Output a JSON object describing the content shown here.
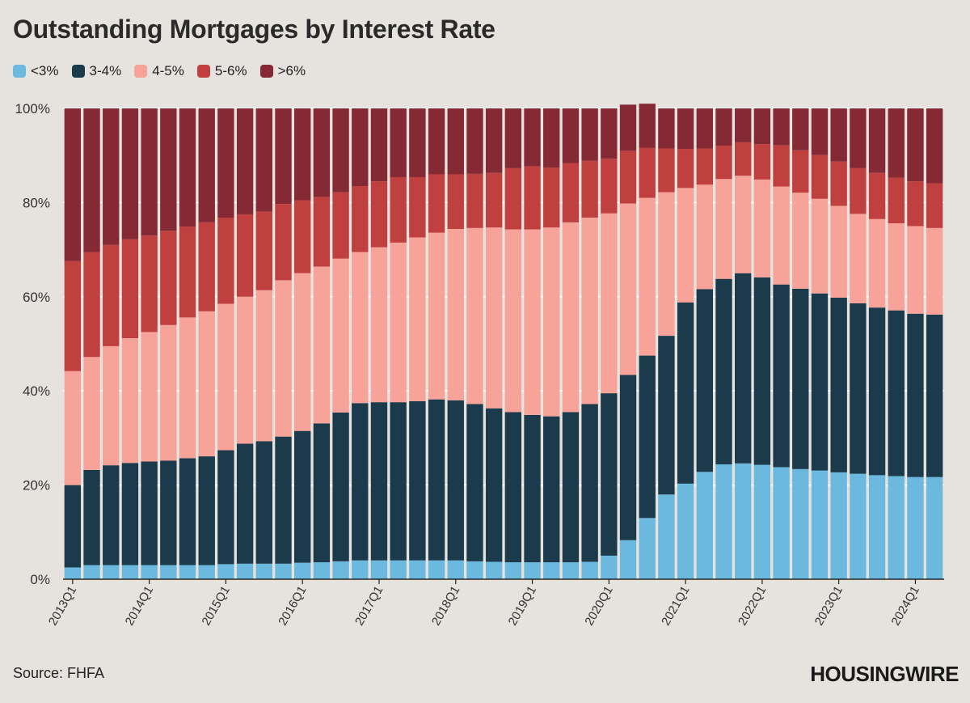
{
  "chart_data": {
    "type": "bar",
    "stacked": true,
    "title": "Outstanding Mortgages by Interest Rate",
    "source": "Source: FHFA",
    "brand": "HOUSINGWIRE",
    "ylim": [
      0,
      100
    ],
    "yticks": [
      "0%",
      "20%",
      "40%",
      "60%",
      "80%",
      "100%"
    ],
    "legend_position": "top-left",
    "categories": [
      "2013Q1",
      "2013Q2",
      "2013Q3",
      "2013Q4",
      "2014Q1",
      "2014Q2",
      "2014Q3",
      "2014Q4",
      "2015Q1",
      "2015Q2",
      "2015Q3",
      "2015Q4",
      "2016Q1",
      "2016Q2",
      "2016Q3",
      "2016Q4",
      "2017Q1",
      "2017Q2",
      "2017Q3",
      "2017Q4",
      "2018Q1",
      "2018Q2",
      "2018Q3",
      "2018Q4",
      "2019Q1",
      "2019Q2",
      "2019Q3",
      "2019Q4",
      "2020Q1",
      "2020Q2",
      "2020Q3",
      "2020Q4",
      "2021Q1",
      "2021Q2",
      "2021Q3",
      "2021Q4",
      "2022Q1",
      "2022Q2",
      "2022Q3",
      "2022Q4",
      "2023Q1",
      "2023Q2",
      "2023Q3",
      "2023Q4",
      "2024Q1",
      "2024Q2"
    ],
    "tick_labels": [
      "2013Q1",
      "2014Q1",
      "2015Q1",
      "2016Q1",
      "2017Q1",
      "2018Q1",
      "2019Q1",
      "2020Q1",
      "2021Q1",
      "2022Q1",
      "2023Q1",
      "2024Q1"
    ],
    "series": [
      {
        "name": "<3%",
        "color": "#6cb9df",
        "values": [
          2.5,
          3,
          3,
          3,
          3,
          3,
          3,
          3,
          3.2,
          3.3,
          3.3,
          3.3,
          3.5,
          3.6,
          3.8,
          4,
          4,
          4,
          4,
          4,
          4,
          3.8,
          3.7,
          3.6,
          3.6,
          3.6,
          3.6,
          3.7,
          5,
          8.3,
          13,
          18,
          20.3,
          22.8,
          24.4,
          24.6,
          24.3,
          23.8,
          23.4,
          23.1,
          22.7,
          22.4,
          22.1,
          21.9,
          21.7,
          21.7
        ]
      },
      {
        "name": "3-4%",
        "color": "#1b3a4c",
        "values": [
          17.5,
          20.2,
          21.2,
          21.7,
          22,
          22.2,
          22.7,
          23.1,
          24.2,
          25.5,
          26,
          27,
          28,
          29.5,
          31.6,
          33.4,
          33.6,
          33.6,
          33.8,
          34.2,
          34,
          33.4,
          32.6,
          31.9,
          31.3,
          31,
          31.9,
          33.5,
          34.5,
          35.1,
          34.5,
          33.7,
          38.5,
          38.8,
          39.4,
          40.4,
          39.8,
          38.8,
          38.3,
          37.6,
          37.1,
          36.2,
          35.6,
          35.2,
          34.7,
          34.5
        ]
      },
      {
        "name": "4-5%",
        "color": "#f7a39a",
        "values": [
          24.2,
          24,
          25.3,
          26.5,
          27.5,
          28.8,
          29.9,
          30.8,
          31.1,
          31.2,
          32.1,
          33.2,
          33.5,
          33.3,
          32.7,
          32.1,
          32.9,
          33.9,
          34.8,
          35.4,
          36.4,
          37.4,
          38.4,
          38.8,
          39.4,
          40.1,
          40.3,
          39.6,
          38.2,
          36.4,
          33.5,
          30.5,
          24.3,
          22.2,
          21.2,
          20.7,
          20.8,
          20.8,
          20.4,
          20.1,
          19.5,
          19,
          18.8,
          18.5,
          18.6,
          18.4
        ]
      },
      {
        "name": "5-6%",
        "color": "#c0403f",
        "values": [
          23.4,
          22.3,
          21.5,
          21,
          20.5,
          20,
          19.3,
          18.9,
          18.3,
          17.5,
          16.7,
          16.2,
          15.5,
          14.8,
          14.1,
          14,
          14,
          13.9,
          12.8,
          12.4,
          11.6,
          11.5,
          11.6,
          13,
          13.4,
          12.7,
          12.6,
          12.1,
          11.6,
          11.2,
          10.6,
          9.3,
          8.3,
          7.7,
          7.1,
          7.1,
          7.5,
          8.8,
          9,
          9.3,
          9.4,
          9.7,
          9.8,
          9.7,
          9.5,
          9.5
        ]
      },
      {
        "name": ">6%",
        "color": "#852935",
        "values": [
          32.4,
          30.5,
          29,
          27.8,
          27,
          26,
          25.1,
          24.2,
          23.2,
          22.5,
          21.9,
          20.3,
          19.5,
          18.8,
          17.8,
          16.5,
          15.5,
          14.6,
          14.6,
          14,
          14,
          13.9,
          13.7,
          12.7,
          12.3,
          12.6,
          11.6,
          11.1,
          10.7,
          9.8,
          9.4,
          8.5,
          8.6,
          8.5,
          7.9,
          7.2,
          7.6,
          7.8,
          8.9,
          9.9,
          11.3,
          12.7,
          13.7,
          14.7,
          15.5,
          15.9
        ]
      }
    ]
  }
}
